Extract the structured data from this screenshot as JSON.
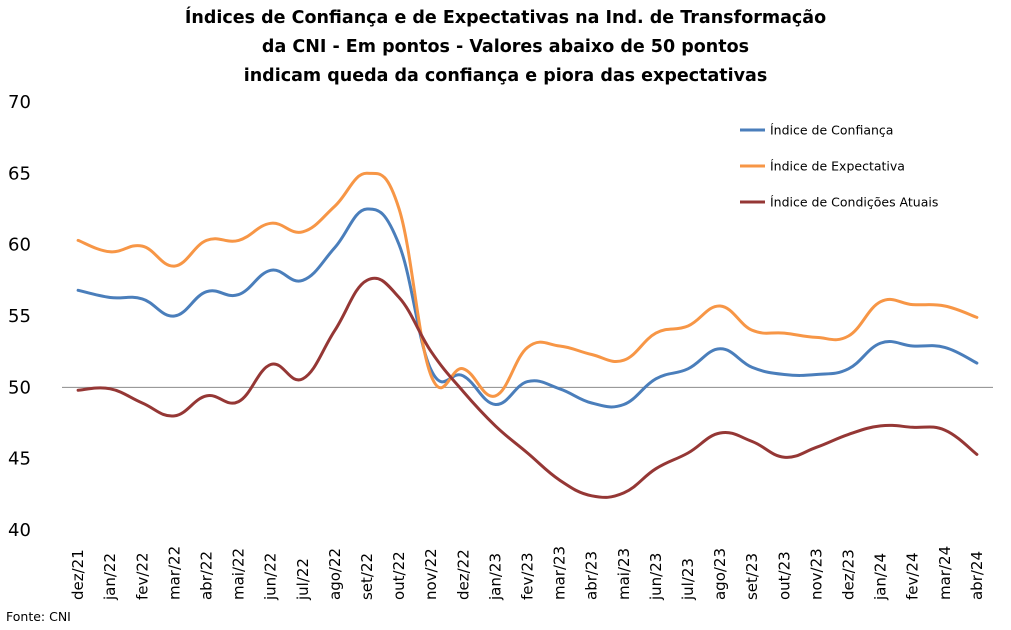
{
  "chart_data": {
    "type": "line",
    "title_lines": [
      "Índices de Confiança e de Expectativas na Ind. de Transformação",
      "da CNI - Em pontos - Valores abaixo de 50 pontos",
      "indicam queda da confiança e piora das expectativas"
    ],
    "categories": [
      "dez/21",
      "jan/22",
      "fev/22",
      "mar/22",
      "abr/22",
      "mai/22",
      "jun/22",
      "jul/22",
      "ago/22",
      "set/22",
      "out/22",
      "nov/22",
      "dez/22",
      "jan/23",
      "fev/23",
      "mar/23",
      "abr/23",
      "mai/23",
      "jun/23",
      "jul/23",
      "ago/23",
      "set/23",
      "out/23",
      "nov/23",
      "dez/23",
      "jan/24",
      "fev/24",
      "mar/24",
      "abr/24"
    ],
    "yticks": [
      "40",
      "45",
      "50",
      "55",
      "60",
      "65",
      "70"
    ],
    "ylim": [
      40,
      70
    ],
    "reference_line": 50,
    "legend_position": "top-right",
    "series": [
      {
        "name": "Índice de Confiança",
        "color": "#4a7ebb",
        "values": [
          56.8,
          56.3,
          56.2,
          55.0,
          56.7,
          56.5,
          58.2,
          57.5,
          59.8,
          62.5,
          60.0,
          51.2,
          50.8,
          48.8,
          50.4,
          49.9,
          48.9,
          48.8,
          50.6,
          51.3,
          52.7,
          51.4,
          50.9,
          50.9,
          51.3,
          53.1,
          52.9,
          52.8,
          51.7
        ]
      },
      {
        "name": "Índice de Expectativa",
        "color": "#f79646",
        "values": [
          60.3,
          59.5,
          59.9,
          58.5,
          60.3,
          60.3,
          61.5,
          60.9,
          62.7,
          65.0,
          62.5,
          50.8,
          51.3,
          49.4,
          52.8,
          52.9,
          52.3,
          51.9,
          53.8,
          54.3,
          55.7,
          54.0,
          53.8,
          53.5,
          53.6,
          56.0,
          55.8,
          55.7,
          54.9
        ]
      },
      {
        "name": "Índice de Condições Atuais",
        "color": "#953735",
        "values": [
          49.8,
          49.9,
          48.9,
          48.0,
          49.4,
          49.0,
          51.6,
          50.6,
          54.0,
          57.5,
          56.3,
          52.5,
          49.7,
          47.3,
          45.4,
          43.5,
          42.4,
          42.6,
          44.3,
          45.4,
          46.8,
          46.2,
          45.1,
          45.8,
          46.7,
          47.3,
          47.2,
          47.0,
          45.3
        ]
      }
    ],
    "source": "Fonte: CNI"
  }
}
